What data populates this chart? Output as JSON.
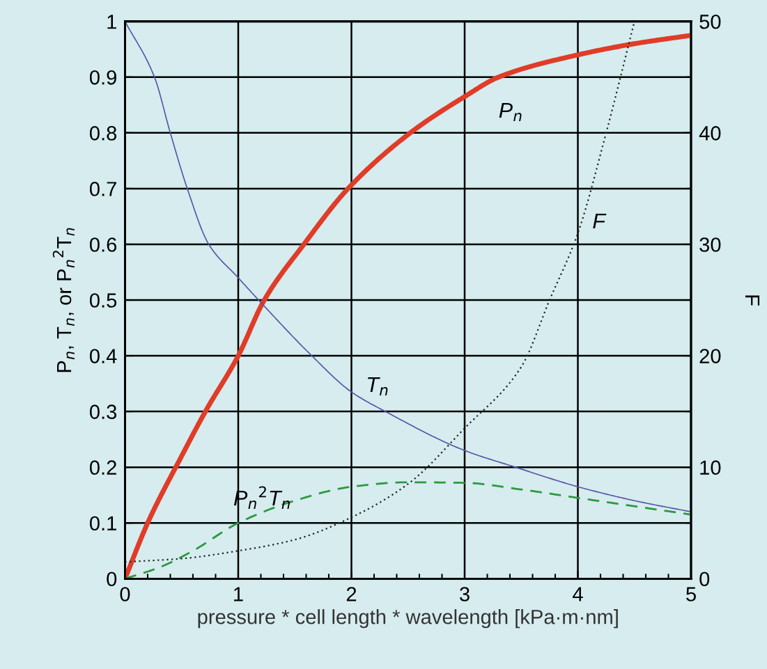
{
  "chart_data": {
    "type": "line",
    "xlabel": "pressure * cell length * wavelength [kPa·m·nm]",
    "ylabel": "P$_{n}$, T$_{n}$, or P$_{n}$$^{2}$T$_{n}$",
    "y2label": "F",
    "xlim": [
      0,
      5
    ],
    "xticks": [
      0,
      1,
      2,
      3,
      4,
      5
    ],
    "ylim": [
      0,
      1
    ],
    "yticks": [
      0,
      0.1,
      0.2,
      0.3,
      0.4,
      0.5,
      0.6,
      0.7,
      0.8,
      0.9,
      1
    ],
    "y2lim": [
      0,
      50
    ],
    "y2ticks": [
      0,
      10,
      20,
      30,
      40,
      50
    ],
    "grid": true,
    "legend": false,
    "series": [
      {
        "name": "P$_{n}$",
        "color": "#e03c28",
        "line_style": "solid",
        "x": [
          0,
          0.2,
          0.5,
          0.71,
          1.0,
          1.23,
          1.58,
          1.97,
          2.52,
          3.0,
          3.3,
          4.0,
          4.5,
          5.0
        ],
        "values": [
          0,
          0.1,
          0.22,
          0.3,
          0.4,
          0.5,
          0.6,
          0.7,
          0.8,
          0.865,
          0.9,
          0.94,
          0.96,
          0.975
        ]
      },
      {
        "name": "T$_{n}$",
        "color": "#5656a8",
        "line_style": "solid",
        "x": [
          0,
          0.26,
          0.4,
          0.55,
          0.74,
          1.0,
          1.18,
          1.65,
          2.0,
          2.3,
          3.0,
          3.45,
          4.0,
          4.5,
          5.0
        ],
        "values": [
          1,
          0.9,
          0.8,
          0.7,
          0.6,
          0.54,
          0.5,
          0.4,
          0.335,
          0.3,
          0.23,
          0.2,
          0.165,
          0.14,
          0.12
        ]
      },
      {
        "name": "P$_{n}$$^{2}$T$_{n}$",
        "color": "#2a9a40",
        "line_style": "dashed",
        "x": [
          0,
          0.3,
          0.6,
          1.0,
          1.5,
          2.0,
          2.5,
          3.0,
          3.5,
          4.0,
          4.5,
          5.0
        ],
        "values": [
          0,
          0.02,
          0.05,
          0.1,
          0.14,
          0.165,
          0.173,
          0.172,
          0.16,
          0.145,
          0.13,
          0.115
        ]
      },
      {
        "name": "F",
        "color": "#222222",
        "line_style": "dotted",
        "axis": "y2",
        "x": [
          0,
          0.5,
          1.0,
          1.5,
          2.0,
          2.5,
          3.0,
          3.5,
          3.75,
          4.0,
          4.25,
          4.5
        ],
        "values": [
          1.5,
          1.8,
          2.5,
          3.5,
          5.5,
          8.5,
          13.5,
          19,
          25,
          31,
          40,
          50
        ]
      }
    ]
  }
}
